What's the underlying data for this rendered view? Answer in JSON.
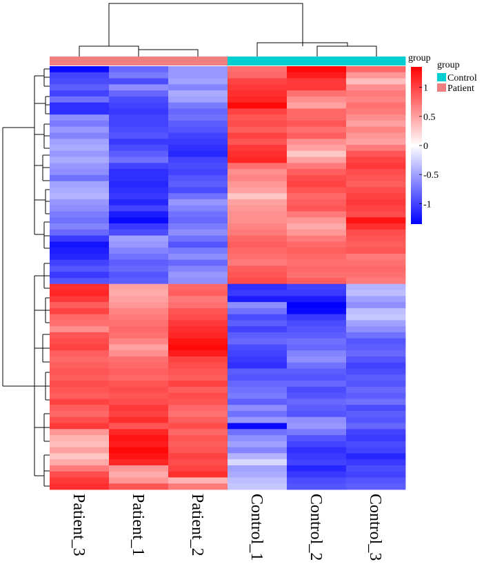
{
  "chart_data": {
    "type": "heatmap",
    "columns": [
      "Patient_3",
      "Patient_1",
      "Patient_2",
      "Control_1",
      "Control_2",
      "Control_3"
    ],
    "column_groups": [
      "Patient",
      "Patient",
      "Patient",
      "Control",
      "Control",
      "Control"
    ],
    "row_count": 70,
    "values": [
      [
        -1.3,
        -0.8,
        -0.55,
        0.75,
        1.3,
        0.8
      ],
      [
        -1.0,
        -0.7,
        -0.55,
        0.8,
        1.2,
        0.55
      ],
      [
        -0.95,
        -0.95,
        -0.5,
        1.0,
        1.05,
        0.35
      ],
      [
        -0.85,
        -0.6,
        -0.65,
        1.05,
        1.05,
        0.6
      ],
      [
        -1.0,
        -0.8,
        -0.45,
        1.1,
        0.75,
        0.7
      ],
      [
        -0.75,
        -0.95,
        -0.5,
        1.15,
        0.6,
        0.65
      ],
      [
        -1.1,
        -1.0,
        -0.7,
        1.3,
        0.5,
        0.75
      ],
      [
        -1.1,
        -1.05,
        -0.8,
        1.0,
        0.8,
        0.7
      ],
      [
        -0.6,
        -1.0,
        -0.75,
        0.9,
        0.8,
        0.6
      ],
      [
        -0.7,
        -1.0,
        -0.85,
        0.95,
        0.9,
        0.5
      ],
      [
        -0.55,
        -0.95,
        -0.9,
        0.85,
        0.75,
        0.65
      ],
      [
        -0.65,
        -0.9,
        -1.0,
        1.0,
        0.85,
        0.55
      ],
      [
        -0.5,
        -1.05,
        -1.05,
        0.9,
        0.6,
        0.5
      ],
      [
        -0.45,
        -0.95,
        -1.1,
        1.05,
        0.5,
        0.7
      ],
      [
        -0.55,
        -0.85,
        -1.15,
        1.1,
        0.3,
        0.9
      ],
      [
        -0.45,
        -0.75,
        -1.0,
        1.15,
        0.5,
        1.0
      ],
      [
        -0.55,
        -1.0,
        -0.95,
        0.75,
        0.7,
        1.05
      ],
      [
        -0.6,
        -1.1,
        -1.0,
        0.6,
        0.85,
        0.95
      ],
      [
        -0.75,
        -1.1,
        -0.9,
        0.65,
        0.95,
        0.9
      ],
      [
        -0.5,
        -1.15,
        -0.85,
        0.55,
        1.0,
        0.85
      ],
      [
        -0.45,
        -1.1,
        -0.95,
        0.5,
        0.9,
        0.95
      ],
      [
        -0.4,
        -1.05,
        -0.75,
        0.3,
        0.8,
        1.0
      ],
      [
        -0.55,
        -1.15,
        -0.55,
        0.5,
        0.85,
        1.05
      ],
      [
        -0.6,
        -1.0,
        -0.65,
        0.55,
        0.9,
        1.0
      ],
      [
        -0.7,
        -1.2,
        -0.75,
        0.6,
        0.7,
        0.95
      ],
      [
        -0.75,
        -1.3,
        -0.8,
        0.6,
        0.55,
        1.25
      ],
      [
        -0.65,
        -1.05,
        -0.7,
        0.65,
        0.45,
        1.1
      ],
      [
        -0.8,
        -0.95,
        -0.6,
        0.7,
        0.55,
        0.95
      ],
      [
        -1.05,
        -0.5,
        -0.75,
        0.8,
        0.7,
        0.9
      ],
      [
        -1.25,
        -0.55,
        -0.9,
        0.85,
        0.8,
        0.85
      ],
      [
        -1.2,
        -0.65,
        -0.7,
        0.8,
        0.85,
        0.9
      ],
      [
        -1.15,
        -0.75,
        -0.6,
        0.75,
        0.8,
        0.7
      ],
      [
        -1.0,
        -0.85,
        -0.8,
        0.7,
        0.75,
        0.75
      ],
      [
        -0.9,
        -0.8,
        -0.65,
        0.85,
        0.8,
        0.8
      ],
      [
        -1.05,
        -0.9,
        -0.55,
        0.9,
        0.75,
        0.75
      ],
      [
        -0.9,
        -0.85,
        -0.6,
        0.95,
        0.85,
        0.7
      ],
      [
        1.1,
        0.5,
        0.8,
        -1.1,
        -1.0,
        -0.4
      ],
      [
        1.15,
        0.45,
        0.85,
        -1.05,
        -1.05,
        -0.35
      ],
      [
        1.05,
        0.5,
        0.7,
        -1.2,
        -1.2,
        -0.5
      ],
      [
        0.85,
        0.55,
        0.75,
        -0.6,
        -1.4,
        -0.6
      ],
      [
        1.0,
        0.65,
        0.9,
        -0.75,
        -1.3,
        -0.35
      ],
      [
        0.8,
        0.7,
        0.95,
        -0.95,
        -1.05,
        -0.3
      ],
      [
        0.75,
        0.75,
        1.05,
        -0.85,
        -0.95,
        -0.5
      ],
      [
        0.6,
        0.8,
        1.1,
        -1.0,
        -0.9,
        -0.6
      ],
      [
        0.9,
        0.75,
        1.15,
        -0.85,
        -0.85,
        -0.75
      ],
      [
        0.95,
        0.65,
        1.25,
        -0.8,
        -0.75,
        -0.9
      ],
      [
        1.0,
        0.5,
        1.3,
        -0.95,
        -0.8,
        -0.85
      ],
      [
        0.85,
        0.6,
        1.2,
        -1.0,
        -0.65,
        -0.8
      ],
      [
        0.8,
        0.75,
        1.0,
        -1.05,
        -0.6,
        -0.9
      ],
      [
        0.85,
        0.8,
        0.95,
        -1.1,
        -0.75,
        -1.0
      ],
      [
        0.9,
        0.85,
        0.9,
        -0.85,
        -0.85,
        -0.95
      ],
      [
        0.85,
        0.8,
        0.85,
        -0.9,
        -0.9,
        -0.85
      ],
      [
        0.95,
        0.9,
        1.0,
        -0.8,
        -0.8,
        -0.9
      ],
      [
        0.9,
        0.95,
        0.85,
        -0.75,
        -0.95,
        -0.8
      ],
      [
        0.85,
        0.9,
        0.95,
        -0.7,
        -0.9,
        -0.85
      ],
      [
        1.0,
        0.95,
        0.9,
        -0.85,
        -0.8,
        -0.75
      ],
      [
        0.85,
        1.05,
        0.8,
        -0.6,
        -0.85,
        -0.95
      ],
      [
        0.8,
        1.0,
        0.75,
        -0.75,
        -0.9,
        -0.85
      ],
      [
        0.95,
        1.1,
        0.85,
        -0.55,
        -0.6,
        -0.9
      ],
      [
        1.05,
        0.9,
        0.95,
        -1.3,
        -0.55,
        -0.8
      ],
      [
        0.55,
        1.15,
        0.8,
        -0.75,
        -0.7,
        -1.0
      ],
      [
        0.4,
        1.25,
        0.9,
        -0.6,
        -0.9,
        -1.05
      ],
      [
        0.35,
        1.2,
        0.85,
        -0.5,
        -1.0,
        -0.95
      ],
      [
        0.5,
        1.3,
        0.9,
        -0.65,
        -1.1,
        -1.0
      ],
      [
        0.3,
        1.25,
        1.0,
        -0.4,
        -1.05,
        -1.15
      ],
      [
        0.45,
        1.15,
        0.95,
        -0.2,
        -1.0,
        -1.05
      ],
      [
        0.7,
        0.55,
        1.0,
        -0.5,
        -1.15,
        -0.95
      ],
      [
        0.95,
        0.45,
        1.1,
        -0.45,
        -1.05,
        -1.0
      ],
      [
        1.05,
        0.55,
        0.4,
        -0.35,
        -0.95,
        -0.9
      ],
      [
        1.1,
        0.9,
        0.7,
        -0.3,
        -0.9,
        -0.85
      ]
    ],
    "color_scale": {
      "title": "",
      "ticks": [
        1,
        0.5,
        0,
        -0.5,
        -1
      ],
      "tick_labels": [
        "1",
        "0.5",
        "0",
        "-0.5",
        "-1"
      ],
      "range": [
        -1.35,
        1.35
      ],
      "low_color": "#0000FF",
      "mid_color": "#FFFFFF",
      "high_color": "#FF0000"
    },
    "annotation": {
      "label": "group",
      "legend_title": "group",
      "legend": [
        {
          "name": "Control",
          "color": "#00CED1"
        },
        {
          "name": "Patient",
          "color": "#F08080"
        }
      ]
    }
  }
}
